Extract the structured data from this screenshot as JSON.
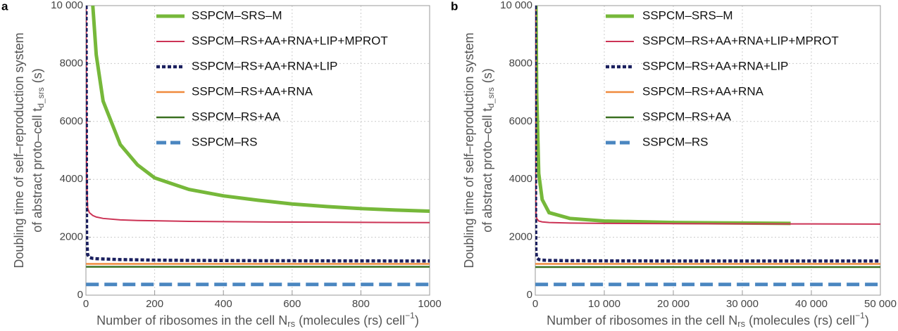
{
  "chart_data": [
    {
      "type": "line",
      "panel": "a",
      "xlabel": [
        "Number of ribosomes in the cell N",
        "rs",
        " (molecules (rs) cell",
        "−1",
        ")"
      ],
      "ylabel": [
        "Doubling time of self–reproduction system",
        "of abstract proto–cell t",
        "d_srs",
        "(s)"
      ],
      "x": [
        0.5,
        2,
        5,
        10,
        20,
        30,
        50,
        100,
        150,
        200,
        300,
        400,
        500,
        600,
        700,
        800,
        900,
        1000
      ],
      "xlim": [
        0,
        1000
      ],
      "xticks": [
        0,
        200,
        400,
        600,
        800,
        1000
      ],
      "ylim": [
        0,
        10000
      ],
      "yticks": [
        0,
        2000,
        4000,
        6000,
        8000,
        {
          "value": 10000,
          "label": "10 000"
        }
      ],
      "grid": true,
      "series": [
        {
          "name": "SSPCM–SRS–M",
          "color": "#76b83a",
          "linestyle": "solid",
          "values": [
            null,
            null,
            null,
            null,
            10000,
            8300,
            6700,
            5200,
            4500,
            4050,
            3650,
            3430,
            3280,
            3150,
            3060,
            2990,
            2940,
            2900
          ]
        },
        {
          "name": "SSPCM–RS+AA+RNA+LIP+MPROT",
          "color": "#cc3355",
          "linestyle": "solid",
          "values": [
            10000,
            4000,
            3000,
            2850,
            2750,
            2700,
            2650,
            2600,
            2580,
            2570,
            2550,
            2540,
            2530,
            2525,
            2520,
            2515,
            2510,
            2505
          ]
        },
        {
          "name": "SSPCM–RS+AA+RNA+LIP",
          "color": "#1a1f5e",
          "linestyle": "dotted",
          "values": [
            10000,
            2000,
            1400,
            1300,
            1270,
            1260,
            1250,
            1230,
            1220,
            1210,
            1200,
            1195,
            1190,
            1188,
            1185,
            1183,
            1181,
            1180
          ]
        },
        {
          "name": "SSPCM–RS+AA+RNA",
          "color": "#f08a3c",
          "linestyle": "solid",
          "values": [
            1080,
            1080,
            1080,
            1080,
            1080,
            1080,
            1080,
            1080,
            1080,
            1080,
            1080,
            1080,
            1080,
            1080,
            1080,
            1080,
            1080,
            1080
          ]
        },
        {
          "name": "SSPCM–RS+AA",
          "color": "#3a7020",
          "linestyle": "solid",
          "values": [
            980,
            980,
            980,
            980,
            980,
            980,
            980,
            980,
            980,
            980,
            980,
            980,
            980,
            980,
            980,
            980,
            980,
            980
          ]
        },
        {
          "name": "SSPCM–RS",
          "color": "#4a86c0",
          "linestyle": "dashed",
          "values": [
            370,
            370,
            370,
            370,
            370,
            370,
            370,
            370,
            370,
            370,
            370,
            370,
            370,
            370,
            370,
            370,
            370,
            370
          ]
        }
      ]
    },
    {
      "type": "line",
      "panel": "b",
      "xlabel": [
        "Number of ribosomes in the cell N",
        "rs",
        " (molecules (rs) cell",
        "−1",
        ")"
      ],
      "ylabel": [
        "Doubling time of self–reproduction system",
        "of abstract proto–cell t",
        "d_srs",
        "(s)"
      ],
      "x": [
        10,
        50,
        100,
        200,
        500,
        1000,
        2000,
        5000,
        10000,
        20000,
        30000,
        37000,
        40000,
        50000
      ],
      "xlim": [
        0,
        50000
      ],
      "xticks": [
        0,
        {
          "value": 10000,
          "label": "10 000"
        },
        {
          "value": 20000,
          "label": "20 000"
        },
        {
          "value": 30000,
          "label": "30 000"
        },
        {
          "value": 40000,
          "label": "40 000"
        },
        {
          "value": 50000,
          "label": "50 000"
        }
      ],
      "ylim": [
        0,
        10000
      ],
      "yticks": [
        0,
        2000,
        4000,
        6000,
        8000,
        {
          "value": 10000,
          "label": "10 000"
        }
      ],
      "grid": true,
      "series": [
        {
          "name": "SSPCM–SRS–M",
          "color": "#76b83a",
          "linestyle": "solid",
          "values": [
            null,
            null,
            10000,
            7000,
            4200,
            3300,
            2850,
            2650,
            2560,
            2510,
            2490,
            2480,
            null,
            null
          ]
        },
        {
          "name": "SSPCM–RS+AA+RNA+LIP+MPROT",
          "color": "#cc3355",
          "linestyle": "solid",
          "values": [
            10000,
            3500,
            2800,
            2650,
            2560,
            2530,
            2510,
            2490,
            2480,
            2470,
            2465,
            2462,
            2460,
            2455
          ]
        },
        {
          "name": "SSPCM–RS+AA+RNA+LIP",
          "color": "#1a1f5e",
          "linestyle": "dotted",
          "values": [
            10000,
            2500,
            1500,
            1300,
            1230,
            1210,
            1200,
            1190,
            1185,
            1180,
            1180,
            1180,
            1180,
            1180
          ]
        },
        {
          "name": "SSPCM–RS+AA+RNA",
          "color": "#f08a3c",
          "linestyle": "solid",
          "values": [
            1080,
            1080,
            1080,
            1080,
            1080,
            1080,
            1080,
            1080,
            1080,
            1080,
            1080,
            1080,
            1080,
            1080
          ]
        },
        {
          "name": "SSPCM–RS+AA",
          "color": "#3a7020",
          "linestyle": "solid",
          "values": [
            970,
            970,
            970,
            970,
            970,
            970,
            970,
            970,
            970,
            970,
            970,
            970,
            970,
            970
          ]
        },
        {
          "name": "SSPCM–RS",
          "color": "#4a86c0",
          "linestyle": "dashed",
          "values": [
            370,
            370,
            370,
            370,
            370,
            370,
            370,
            370,
            370,
            370,
            370,
            370,
            370,
            370
          ]
        }
      ]
    }
  ]
}
